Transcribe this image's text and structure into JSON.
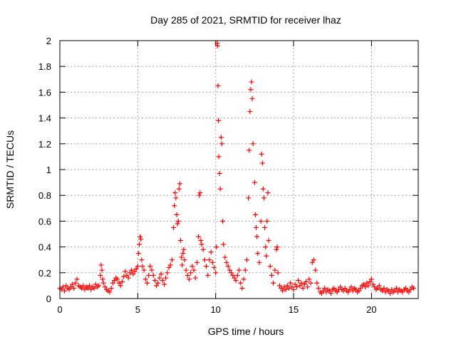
{
  "chart_data": {
    "type": "scatter",
    "title": "Day 285 of 2021, SRMTID for receiver lhaz",
    "xlabel": "GPS time / hours",
    "ylabel": "SRMTID / TECUs",
    "xlim": [
      0,
      23
    ],
    "ylim": [
      0,
      2
    ],
    "xticks": [
      0,
      5,
      10,
      15,
      20
    ],
    "xtick_labels": [
      "0",
      "5",
      "10",
      "15",
      "20"
    ],
    "yticks": [
      0,
      0.2,
      0.4,
      0.6,
      0.8,
      1,
      1.2,
      1.4,
      1.6,
      1.8,
      2
    ],
    "ytick_labels": [
      "0",
      "0.2",
      "0.4",
      "0.6",
      "0.8",
      "1",
      "1.2",
      "1.4",
      "1.6",
      "1.8",
      "2"
    ],
    "grid": true,
    "marker": "plus",
    "color": "#ff0000",
    "series": [
      {
        "name": "SRMTID",
        "points": [
          [
            0.0,
            0.08
          ],
          [
            0.1,
            0.07
          ],
          [
            0.2,
            0.09
          ],
          [
            0.3,
            0.06
          ],
          [
            0.4,
            0.1
          ],
          [
            0.5,
            0.08
          ],
          [
            0.6,
            0.07
          ],
          [
            0.7,
            0.09
          ],
          [
            0.8,
            0.11
          ],
          [
            0.9,
            0.08
          ],
          [
            1.0,
            0.12
          ],
          [
            1.1,
            0.15
          ],
          [
            1.2,
            0.1
          ],
          [
            1.3,
            0.09
          ],
          [
            1.4,
            0.08
          ],
          [
            1.5,
            0.1
          ],
          [
            1.6,
            0.07
          ],
          [
            1.7,
            0.09
          ],
          [
            1.8,
            0.08
          ],
          [
            1.9,
            0.1
          ],
          [
            2.0,
            0.07
          ],
          [
            2.1,
            0.09
          ],
          [
            2.2,
            0.08
          ],
          [
            2.3,
            0.11
          ],
          [
            2.4,
            0.09
          ],
          [
            2.5,
            0.1
          ],
          [
            2.6,
            0.18
          ],
          [
            2.65,
            0.26
          ],
          [
            2.7,
            0.22
          ],
          [
            2.75,
            0.15
          ],
          [
            2.8,
            0.12
          ],
          [
            2.9,
            0.09
          ],
          [
            3.0,
            0.07
          ],
          [
            3.1,
            0.06
          ],
          [
            3.2,
            0.05
          ],
          [
            3.3,
            0.08
          ],
          [
            3.4,
            0.12
          ],
          [
            3.5,
            0.14
          ],
          [
            3.6,
            0.16
          ],
          [
            3.7,
            0.15
          ],
          [
            3.8,
            0.12
          ],
          [
            3.9,
            0.1
          ],
          [
            4.0,
            0.13
          ],
          [
            4.1,
            0.17
          ],
          [
            4.2,
            0.21
          ],
          [
            4.3,
            0.18
          ],
          [
            4.4,
            0.16
          ],
          [
            4.5,
            0.2
          ],
          [
            4.6,
            0.22
          ],
          [
            4.7,
            0.19
          ],
          [
            4.8,
            0.21
          ],
          [
            4.9,
            0.23
          ],
          [
            5.0,
            0.25
          ],
          [
            5.05,
            0.35
          ],
          [
            5.1,
            0.42
          ],
          [
            5.15,
            0.48
          ],
          [
            5.2,
            0.46
          ],
          [
            5.25,
            0.3
          ],
          [
            5.3,
            0.25
          ],
          [
            5.4,
            0.22
          ],
          [
            5.5,
            0.15
          ],
          [
            5.6,
            0.12
          ],
          [
            5.7,
            0.18
          ],
          [
            5.8,
            0.25
          ],
          [
            5.9,
            0.22
          ],
          [
            6.0,
            0.18
          ],
          [
            6.1,
            0.14
          ],
          [
            6.2,
            0.1
          ],
          [
            6.3,
            0.12
          ],
          [
            6.4,
            0.16
          ],
          [
            6.5,
            0.19
          ],
          [
            6.6,
            0.14
          ],
          [
            6.7,
            0.11
          ],
          [
            6.8,
            0.16
          ],
          [
            6.9,
            0.2
          ],
          [
            7.0,
            0.24
          ],
          [
            7.1,
            0.26
          ],
          [
            7.2,
            0.3
          ],
          [
            7.3,
            0.55
          ],
          [
            7.35,
            0.72
          ],
          [
            7.4,
            0.82
          ],
          [
            7.45,
            0.78
          ],
          [
            7.5,
            0.65
          ],
          [
            7.55,
            0.58
          ],
          [
            7.6,
            0.6
          ],
          [
            7.65,
            0.85
          ],
          [
            7.7,
            0.89
          ],
          [
            7.75,
            0.45
          ],
          [
            7.8,
            0.32
          ],
          [
            7.85,
            0.26
          ],
          [
            7.9,
            0.35
          ],
          [
            7.95,
            0.38
          ],
          [
            8.0,
            0.3
          ],
          [
            8.1,
            0.22
          ],
          [
            8.2,
            0.18
          ],
          [
            8.3,
            0.15
          ],
          [
            8.4,
            0.2
          ],
          [
            8.5,
            0.25
          ],
          [
            8.6,
            0.22
          ],
          [
            8.7,
            0.16
          ],
          [
            8.8,
            0.28
          ],
          [
            8.9,
            0.48
          ],
          [
            8.95,
            0.8
          ],
          [
            9.0,
            0.82
          ],
          [
            9.05,
            0.45
          ],
          [
            9.1,
            0.42
          ],
          [
            9.2,
            0.38
          ],
          [
            9.3,
            0.3
          ],
          [
            9.4,
            0.25
          ],
          [
            9.5,
            0.18
          ],
          [
            9.6,
            0.3
          ],
          [
            9.7,
            0.36
          ],
          [
            9.8,
            0.28
          ],
          [
            9.9,
            0.24
          ],
          [
            10.0,
            0.2
          ],
          [
            10.05,
            0.4
          ],
          [
            10.1,
            1.98
          ],
          [
            10.12,
            1.96
          ],
          [
            10.15,
            1.65
          ],
          [
            10.18,
            1.38
          ],
          [
            10.2,
            1.1
          ],
          [
            10.25,
            0.97
          ],
          [
            10.3,
            0.85
          ],
          [
            10.35,
            1.25
          ],
          [
            10.4,
            1.2
          ],
          [
            10.45,
            0.6
          ],
          [
            10.5,
            0.42
          ],
          [
            10.6,
            0.32
          ],
          [
            10.7,
            0.28
          ],
          [
            10.8,
            0.25
          ],
          [
            10.9,
            0.22
          ],
          [
            11.0,
            0.2
          ],
          [
            11.1,
            0.18
          ],
          [
            11.2,
            0.16
          ],
          [
            11.3,
            0.14
          ],
          [
            11.4,
            0.18
          ],
          [
            11.5,
            0.22
          ],
          [
            11.6,
            0.12
          ],
          [
            11.7,
            0.08
          ],
          [
            11.8,
            0.15
          ],
          [
            11.9,
            0.22
          ],
          [
            12.0,
            0.3
          ],
          [
            12.1,
            0.78
          ],
          [
            12.15,
            1.15
          ],
          [
            12.2,
            1.45
          ],
          [
            12.25,
            1.62
          ],
          [
            12.3,
            1.68
          ],
          [
            12.35,
            1.55
          ],
          [
            12.4,
            1.2
          ],
          [
            12.5,
            0.9
          ],
          [
            12.55,
            0.65
          ],
          [
            12.6,
            0.55
          ],
          [
            12.65,
            0.48
          ],
          [
            12.7,
            0.35
          ],
          [
            12.8,
            0.28
          ],
          [
            12.9,
            0.6
          ],
          [
            12.95,
            1.12
          ],
          [
            13.0,
            1.05
          ],
          [
            13.05,
            0.85
          ],
          [
            13.1,
            0.78
          ],
          [
            13.15,
            0.55
          ],
          [
            13.2,
            0.4
          ],
          [
            13.25,
            0.33
          ],
          [
            13.3,
            0.6
          ],
          [
            13.35,
            0.82
          ],
          [
            13.4,
            0.45
          ],
          [
            13.5,
            0.25
          ],
          [
            13.6,
            0.18
          ],
          [
            13.7,
            0.12
          ],
          [
            13.8,
            0.22
          ],
          [
            13.9,
            0.38
          ],
          [
            13.95,
            0.4
          ],
          [
            14.0,
            0.2
          ],
          [
            14.1,
            0.1
          ],
          [
            14.2,
            0.08
          ],
          [
            14.3,
            0.06
          ],
          [
            14.4,
            0.09
          ],
          [
            14.5,
            0.07
          ],
          [
            14.6,
            0.1
          ],
          [
            14.7,
            0.08
          ],
          [
            14.8,
            0.12
          ],
          [
            14.9,
            0.09
          ],
          [
            15.0,
            0.07
          ],
          [
            15.1,
            0.11
          ],
          [
            15.2,
            0.09
          ],
          [
            15.3,
            0.14
          ],
          [
            15.4,
            0.1
          ],
          [
            15.5,
            0.12
          ],
          [
            15.6,
            0.08
          ],
          [
            15.7,
            0.11
          ],
          [
            15.8,
            0.13
          ],
          [
            15.9,
            0.09
          ],
          [
            16.0,
            0.15
          ],
          [
            16.1,
            0.12
          ],
          [
            16.2,
            0.28
          ],
          [
            16.3,
            0.3
          ],
          [
            16.4,
            0.22
          ],
          [
            16.5,
            0.12
          ],
          [
            16.6,
            0.08
          ],
          [
            16.7,
            0.05
          ],
          [
            16.8,
            0.04
          ],
          [
            16.9,
            0.06
          ],
          [
            17.0,
            0.08
          ],
          [
            17.1,
            0.05
          ],
          [
            17.2,
            0.07
          ],
          [
            17.3,
            0.06
          ],
          [
            17.4,
            0.04
          ],
          [
            17.5,
            0.07
          ],
          [
            17.6,
            0.08
          ],
          [
            17.7,
            0.06
          ],
          [
            17.8,
            0.05
          ],
          [
            17.9,
            0.07
          ],
          [
            18.0,
            0.09
          ],
          [
            18.1,
            0.07
          ],
          [
            18.2,
            0.06
          ],
          [
            18.3,
            0.08
          ],
          [
            18.4,
            0.06
          ],
          [
            18.5,
            0.05
          ],
          [
            18.6,
            0.07
          ],
          [
            18.7,
            0.09
          ],
          [
            18.8,
            0.06
          ],
          [
            18.9,
            0.08
          ],
          [
            19.0,
            0.07
          ],
          [
            19.1,
            0.05
          ],
          [
            19.2,
            0.06
          ],
          [
            19.3,
            0.08
          ],
          [
            19.4,
            0.1
          ],
          [
            19.5,
            0.11
          ],
          [
            19.6,
            0.09
          ],
          [
            19.7,
            0.12
          ],
          [
            19.8,
            0.1
          ],
          [
            19.9,
            0.13
          ],
          [
            20.0,
            0.15
          ],
          [
            20.1,
            0.11
          ],
          [
            20.2,
            0.09
          ],
          [
            20.3,
            0.07
          ],
          [
            20.4,
            0.08
          ],
          [
            20.5,
            0.1
          ],
          [
            20.6,
            0.07
          ],
          [
            20.7,
            0.06
          ],
          [
            20.8,
            0.08
          ],
          [
            20.9,
            0.05
          ],
          [
            21.0,
            0.07
          ],
          [
            21.1,
            0.06
          ],
          [
            21.2,
            0.04
          ],
          [
            21.3,
            0.07
          ],
          [
            21.4,
            0.05
          ],
          [
            21.5,
            0.06
          ],
          [
            21.6,
            0.08
          ],
          [
            21.7,
            0.05
          ],
          [
            21.8,
            0.07
          ],
          [
            21.9,
            0.06
          ],
          [
            22.0,
            0.05
          ],
          [
            22.1,
            0.07
          ],
          [
            22.2,
            0.08
          ],
          [
            22.3,
            0.06
          ],
          [
            22.4,
            0.05
          ],
          [
            22.5,
            0.07
          ],
          [
            22.6,
            0.09
          ],
          [
            22.7,
            0.08
          ]
        ]
      }
    ]
  }
}
